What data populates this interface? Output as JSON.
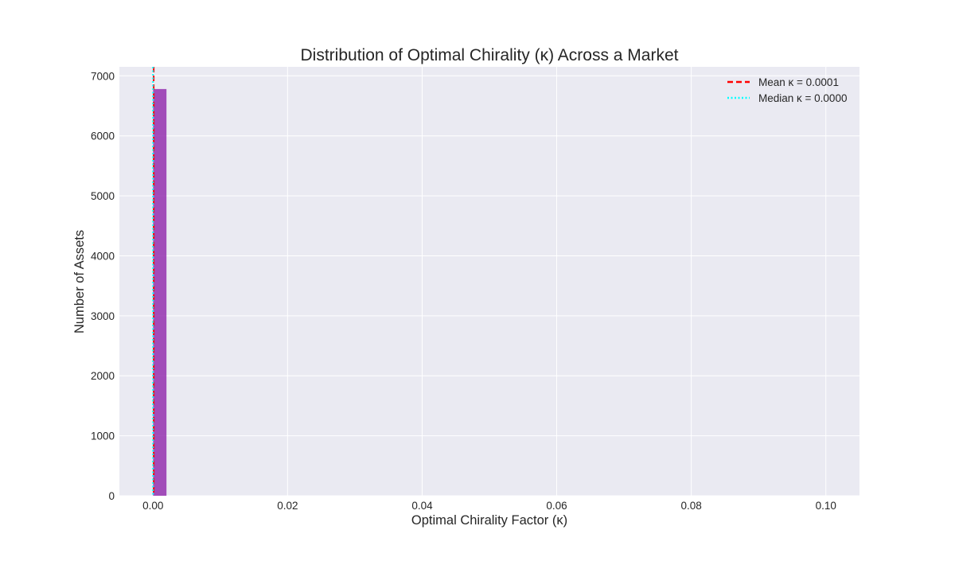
{
  "chart_data": {
    "type": "bar",
    "title": "Distribution of Optimal Chirality (κ) Across a Market",
    "xlabel": "Optimal Chirality Factor (κ)",
    "ylabel": "Number of Assets",
    "xlim": [
      -0.005,
      0.105
    ],
    "ylim": [
      0,
      7150
    ],
    "xticks": [
      0.0,
      0.02,
      0.04,
      0.06,
      0.08,
      0.1
    ],
    "xtick_labels": [
      "0.00",
      "0.02",
      "0.04",
      "0.06",
      "0.08",
      "0.10"
    ],
    "yticks": [
      0,
      1000,
      2000,
      3000,
      4000,
      5000,
      6000,
      7000
    ],
    "ytick_labels": [
      "0",
      "1000",
      "2000",
      "3000",
      "4000",
      "5000",
      "6000",
      "7000"
    ],
    "bins": [
      {
        "x0": 0.0,
        "x1": 0.002,
        "count": 6780
      }
    ],
    "reference_lines": [
      {
        "name": "Mean κ = 0.0001",
        "x": 0.0001,
        "color": "#ff0000",
        "style": "dashed"
      },
      {
        "name": "Median κ = 0.0000",
        "x": 0.0,
        "color": "#00ffff",
        "style": "dotted"
      }
    ],
    "bar_color": "#8e24aa",
    "background": "#eaeaf2",
    "grid": true,
    "legend_position": "top-right"
  }
}
